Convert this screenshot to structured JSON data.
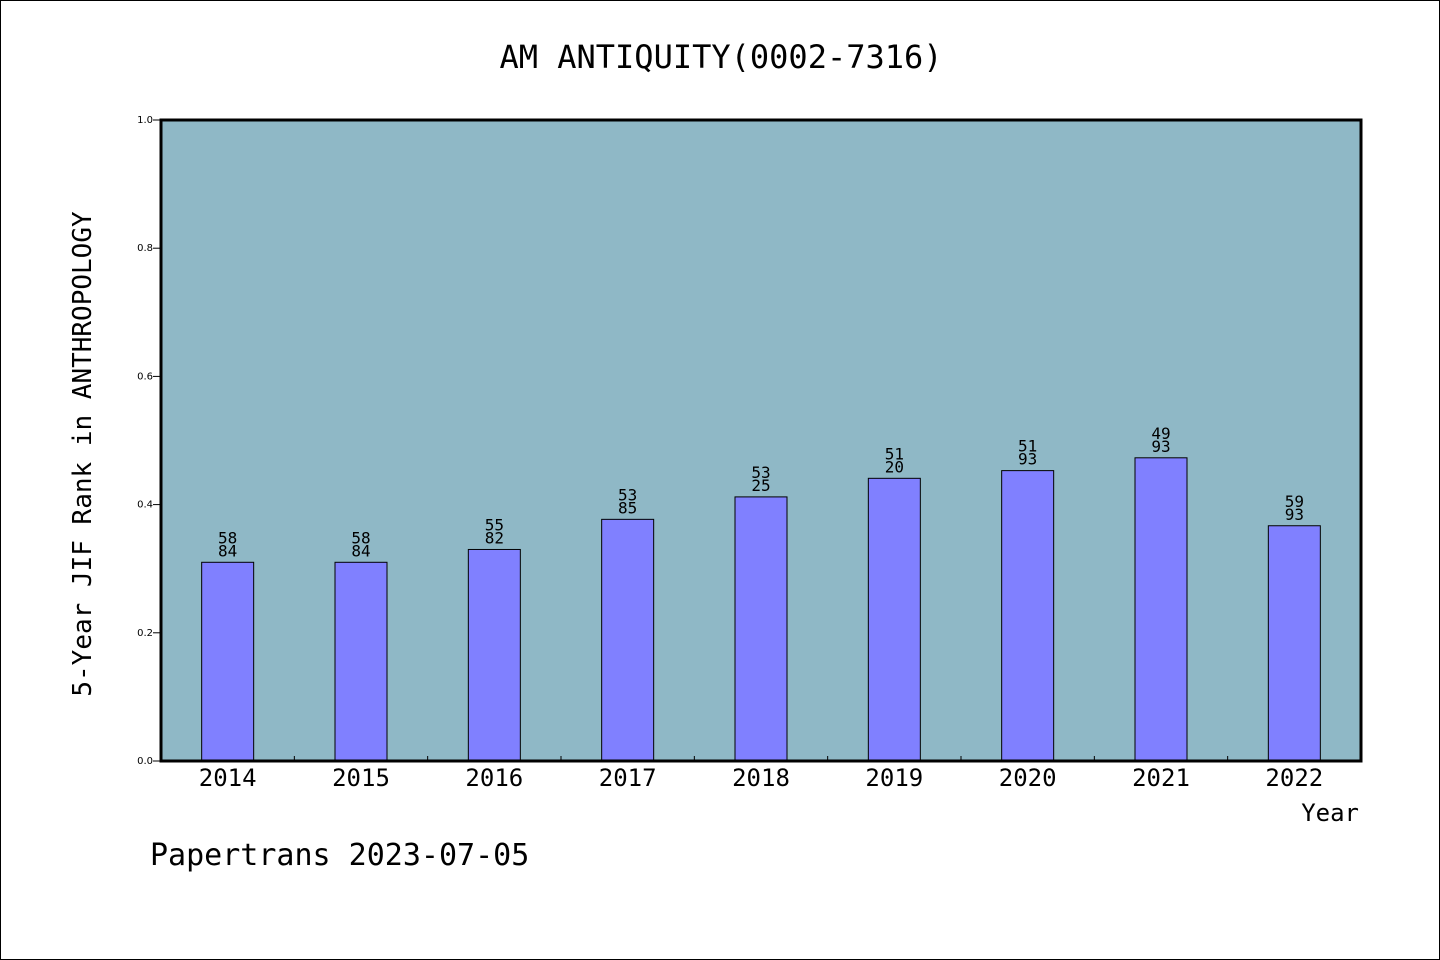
{
  "chart_data": {
    "type": "bar",
    "title": "AM ANTIQUITY(0002-7316)",
    "xlabel": "Year",
    "ylabel": "5-Year JIF Rank in ANTHROPOLOGY",
    "ylim": [
      0,
      1.0
    ],
    "yticks": [
      "0.0",
      "0.2",
      "0.4",
      "0.6",
      "0.8",
      "1.0"
    ],
    "categories": [
      "2014",
      "2015",
      "2016",
      "2017",
      "2018",
      "2019",
      "2020",
      "2021",
      "2022"
    ],
    "values": [
      0.31,
      0.31,
      0.33,
      0.377,
      0.412,
      0.441,
      0.453,
      0.473,
      0.367
    ],
    "data_labels": [
      [
        "58",
        "84"
      ],
      [
        "58",
        "84"
      ],
      [
        "55",
        "82"
      ],
      [
        "53",
        "85"
      ],
      [
        "53",
        "25"
      ],
      [
        "51",
        "20"
      ],
      [
        "51",
        "93"
      ],
      [
        "49",
        "93"
      ],
      [
        "59",
        "93"
      ]
    ],
    "grid": false,
    "colors": {
      "plot_background": "#8fb8c6",
      "bar_fill": "#8080ff",
      "bar_stroke": "#000000"
    }
  },
  "footer": "Papertrans 2023-07-05"
}
